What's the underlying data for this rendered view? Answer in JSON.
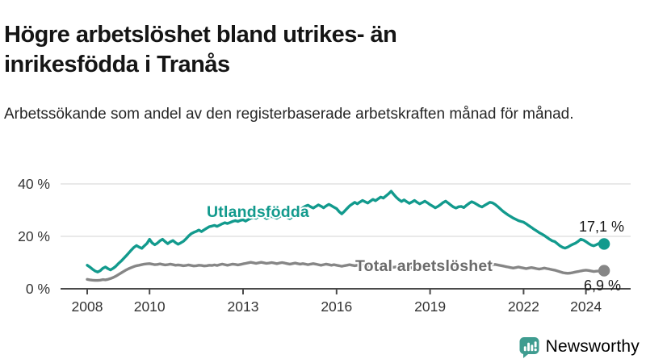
{
  "title_lines": [
    "Högre arbetslöshet bland utrikes- än",
    "inrikesfödda i Tranås"
  ],
  "title": "Högre arbetslöshet bland utrikes- än inrikesfödda i Tranås",
  "subtitle": "Arbetssökande som andel av den registerbaserade arbetskraften månad för månad.",
  "branding": {
    "logo_text": "Newsworthy",
    "logo_icon": "bar-chart-speech-bubble-icon",
    "logo_color": "#3f9c90"
  },
  "colors": {
    "foreign_born_line": "#129a8d",
    "total_line": "#868686",
    "total_label": "#6b6b6b",
    "grid": "#dcdcdc",
    "axis": "#4a4a4a",
    "tick_text": "#333333",
    "annotation_text": "#1a1a1a"
  },
  "chart_data": {
    "type": "line",
    "title": "Högre arbetslöshet bland utrikes- än inrikesfödda i Tranås",
    "subtitle": "Arbetssökande som andel av den registerbaserade arbetskraften månad för månad.",
    "xlabel": "",
    "ylabel": "",
    "x_start_year": 2008,
    "x_step_months": 1,
    "x_end": "2024-08",
    "ylim": [
      0,
      40
    ],
    "grid": "horizontal",
    "legend_position": "inline-labels",
    "x_ticks": [
      {
        "year": 2008,
        "label": "2008"
      },
      {
        "year": 2010,
        "label": "2010"
      },
      {
        "year": 2013,
        "label": "2013"
      },
      {
        "year": 2016,
        "label": "2016"
      },
      {
        "year": 2019,
        "label": "2019"
      },
      {
        "year": 2022,
        "label": "2022"
      },
      {
        "year": 2024,
        "label": "2024"
      }
    ],
    "y_ticks": [
      {
        "value": 0,
        "label": "0 %"
      },
      {
        "value": 20,
        "label": "20 %"
      },
      {
        "value": 40,
        "label": "40 %"
      }
    ],
    "series": [
      {
        "name": "Utlandsfödda",
        "color": "#129a8d",
        "label_color": "#129a8d",
        "end_value": 17.1,
        "end_label": "17,1 %",
        "inline_label": {
          "x": 256,
          "y": 269
        },
        "end_label_pos": {
          "x": 745,
          "y": 287
        },
        "values": [
          9.0,
          8.3,
          7.5,
          6.8,
          6.4,
          6.9,
          7.8,
          8.3,
          7.7,
          7.2,
          7.8,
          8.6,
          9.6,
          10.5,
          11.5,
          12.6,
          13.7,
          14.8,
          15.8,
          16.5,
          15.9,
          15.4,
          16.4,
          17.3,
          18.9,
          17.5,
          16.8,
          17.4,
          18.3,
          18.9,
          18.0,
          17.2,
          17.9,
          18.4,
          17.6,
          17.0,
          17.5,
          18.1,
          19.0,
          20.1,
          21.0,
          21.5,
          21.9,
          22.4,
          21.8,
          22.5,
          23.1,
          23.7,
          23.9,
          24.2,
          23.8,
          24.3,
          24.8,
          25.2,
          24.9,
          25.3,
          25.7,
          26.0,
          25.7,
          26.1,
          26.3,
          25.8,
          26.4,
          26.9,
          27.3,
          26.9,
          27.5,
          27.9,
          27.4,
          26.8,
          27.2,
          27.6,
          27.3,
          26.9,
          27.5,
          28.1,
          27.7,
          27.2,
          26.8,
          27.4,
          28.2,
          29.1,
          30.0,
          30.9,
          31.5,
          31.9,
          31.3,
          30.8,
          31.4,
          32.0,
          31.5,
          30.9,
          31.6,
          32.2,
          31.7,
          31.1,
          30.6,
          29.4,
          28.6,
          29.5,
          30.6,
          31.6,
          32.3,
          33.0,
          32.4,
          33.1,
          33.7,
          33.2,
          32.7,
          33.4,
          34.1,
          33.6,
          34.3,
          35.0,
          34.6,
          35.4,
          36.2,
          37.2,
          36.0,
          34.9,
          34.0,
          33.3,
          33.9,
          33.2,
          32.6,
          33.1,
          33.7,
          33.0,
          32.4,
          32.9,
          33.4,
          32.8,
          32.1,
          31.5,
          30.9,
          31.4,
          32.1,
          32.9,
          33.4,
          32.7,
          31.9,
          31.2,
          30.8,
          31.3,
          31.4,
          31.0,
          31.8,
          32.6,
          33.2,
          32.8,
          32.2,
          31.6,
          31.2,
          31.8,
          32.4,
          33.0,
          32.8,
          32.2,
          31.4,
          30.5,
          29.6,
          28.9,
          28.2,
          27.6,
          27.0,
          26.5,
          26.0,
          25.7,
          25.4,
          24.8,
          24.1,
          23.4,
          22.7,
          22.1,
          21.4,
          20.9,
          20.3,
          19.6,
          18.9,
          18.3,
          18.0,
          17.2,
          16.4,
          15.8,
          15.5,
          15.9,
          16.5,
          17.0,
          17.4,
          18.1,
          18.9,
          18.6,
          18.0,
          17.3,
          16.7,
          16.4,
          16.8,
          17.3,
          17.4,
          17.1
        ]
      },
      {
        "name": "Total arbetslöshet",
        "color": "#868686",
        "label_color": "#6b6b6b",
        "end_value": 6.9,
        "end_label": "6,9 %",
        "inline_label": {
          "x": 440,
          "y": 336
        },
        "end_label_pos": {
          "x": 746,
          "y": 360
        },
        "values": [
          3.6,
          3.4,
          3.3,
          3.2,
          3.2,
          3.3,
          3.5,
          3.4,
          3.6,
          3.9,
          4.3,
          4.8,
          5.4,
          6.0,
          6.6,
          7.2,
          7.7,
          8.1,
          8.5,
          8.8,
          9.0,
          9.2,
          9.4,
          9.5,
          9.6,
          9.4,
          9.2,
          9.3,
          9.5,
          9.3,
          9.1,
          9.2,
          9.4,
          9.2,
          9.0,
          9.1,
          9.0,
          8.8,
          8.9,
          9.1,
          8.9,
          8.7,
          8.8,
          9.0,
          8.9,
          8.7,
          8.8,
          9.0,
          8.9,
          9.1,
          8.9,
          9.2,
          9.4,
          9.2,
          9.0,
          9.2,
          9.4,
          9.3,
          9.1,
          9.3,
          9.5,
          9.7,
          9.9,
          10.1,
          9.9,
          9.7,
          9.9,
          10.1,
          9.9,
          9.7,
          9.8,
          10.0,
          9.8,
          9.6,
          9.8,
          10.0,
          9.8,
          9.6,
          9.4,
          9.6,
          9.8,
          9.6,
          9.4,
          9.6,
          9.4,
          9.2,
          9.4,
          9.6,
          9.4,
          9.2,
          9.0,
          9.2,
          9.4,
          9.2,
          9.0,
          9.2,
          9.0,
          8.8,
          8.6,
          8.8,
          9.0,
          9.2,
          9.0,
          8.8,
          9.0,
          9.2,
          9.0,
          8.8,
          8.6,
          8.8,
          9.0,
          8.8,
          8.6,
          8.8,
          9.0,
          8.8,
          8.6,
          8.4,
          8.2,
          8.4,
          8.2,
          8.0,
          8.2,
          8.4,
          8.2,
          8.0,
          7.8,
          8.0,
          8.2,
          8.0,
          7.8,
          8.0,
          7.8,
          7.6,
          7.8,
          8.0,
          8.2,
          8.4,
          8.6,
          8.4,
          8.2,
          8.0,
          8.2,
          8.4,
          8.6,
          8.9,
          9.3,
          9.7,
          9.9,
          9.7,
          9.5,
          9.3,
          9.1,
          9.3,
          9.1,
          8.9,
          9.1,
          9.3,
          9.1,
          8.9,
          8.7,
          8.5,
          8.3,
          8.1,
          7.9,
          8.1,
          8.3,
          8.1,
          7.9,
          7.7,
          7.9,
          8.1,
          7.9,
          7.7,
          7.5,
          7.7,
          7.9,
          7.7,
          7.5,
          7.3,
          7.1,
          6.8,
          6.5,
          6.2,
          6.0,
          5.9,
          6.0,
          6.2,
          6.4,
          6.6,
          6.8,
          7.0,
          7.1,
          7.0,
          6.8,
          6.6,
          6.7,
          6.8,
          7.0,
          6.9
        ]
      }
    ]
  }
}
